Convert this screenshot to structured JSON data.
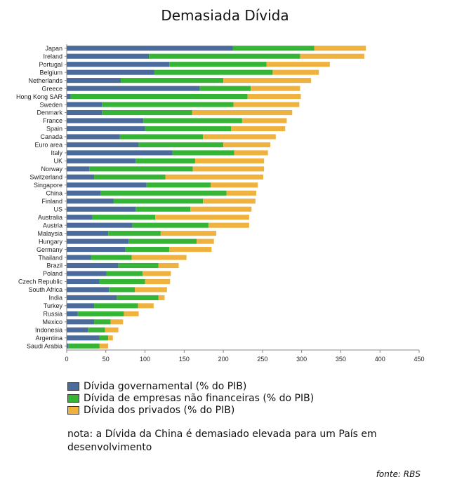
{
  "chart_data": {
    "type": "bar",
    "orientation": "horizontal",
    "stacked": true,
    "title": "Demasiada Dívida",
    "categories": [
      "Japan",
      "Ireland",
      "Portugal",
      "Belgium",
      "Netherlands",
      "Greece",
      "Hong Kong SAR",
      "Sweden",
      "Denmark",
      "France",
      "Spain",
      "Canada",
      "Euro area",
      "Italy",
      "UK",
      "Norway",
      "Switzerland",
      "Singapore",
      "China",
      "Finland",
      "US",
      "Australia",
      "Austria",
      "Malaysia",
      "Hungary",
      "Germany",
      "Thailand",
      "Brazil",
      "Poland",
      "Czech Republic",
      "South Africa",
      "India",
      "Turkey",
      "Russia",
      "Mexico",
      "Indonesia",
      "Argentina",
      "Saudi Arabia"
    ],
    "series": [
      {
        "name": "Dívida governamental (% do PIB)",
        "color": "#4a6b9b",
        "values": [
          212,
          105,
          131,
          112,
          69,
          170,
          5,
          45,
          45,
          98,
          100,
          68,
          92,
          135,
          88,
          29,
          35,
          102,
          43,
          60,
          88,
          33,
          84,
          53,
          79,
          75,
          31,
          66,
          51,
          42,
          54,
          64,
          35,
          14,
          35,
          27,
          42,
          2
        ]
      },
      {
        "name": "Dívida de empresas não financeiras (% do PIB)",
        "color": "#35b435",
        "values": [
          104,
          193,
          124,
          151,
          131,
          65,
          226,
          168,
          115,
          126,
          110,
          106,
          108,
          79,
          76,
          132,
          91,
          82,
          161,
          114,
          70,
          80,
          97,
          67,
          87,
          56,
          52,
          51,
          46,
          58,
          33,
          53,
          56,
          59,
          21,
          22,
          11,
          40
        ]
      },
      {
        "name": "Dívida dos privados (% do PIB)",
        "color": "#f0b23e",
        "values": [
          66,
          82,
          81,
          59,
          112,
          63,
          68,
          84,
          128,
          57,
          69,
          93,
          60,
          43,
          88,
          91,
          125,
          60,
          38,
          67,
          78,
          120,
          52,
          71,
          22,
          54,
          70,
          26,
          36,
          32,
          41,
          8,
          20,
          19,
          16,
          17,
          6,
          11
        ]
      }
    ],
    "xlim": [
      0,
      450
    ],
    "xticks": [
      0,
      50,
      100,
      150,
      200,
      250,
      300,
      350,
      400,
      450
    ],
    "grid": false,
    "legend": "bottom"
  },
  "note": "nota: a Dívida da China é demasiado elevada para um País em desenvolvimento",
  "source": "fonte: RBS"
}
